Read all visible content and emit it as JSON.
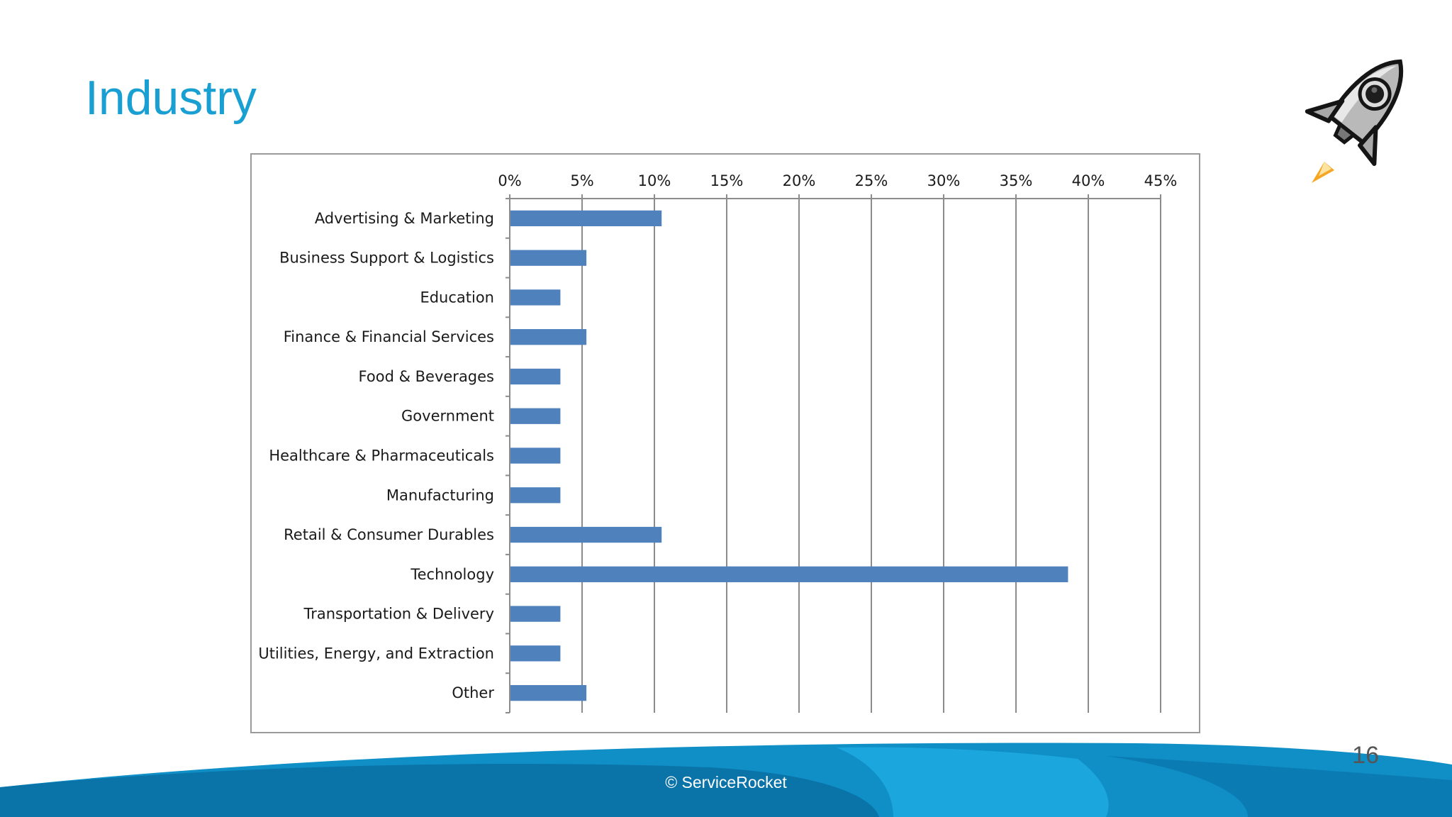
{
  "slide": {
    "title": "Industry",
    "copyright": "© ServiceRocket",
    "page_number": "16"
  },
  "colors": {
    "title": "#1a9fd3",
    "bar": "#4f81bd",
    "grid": "#8c8c8c",
    "footer_dark": "#0a73a8",
    "footer_light": "#1ba7dd"
  },
  "icons": {
    "logo": "rocket-icon"
  },
  "chart_data": {
    "type": "bar",
    "orientation": "horizontal",
    "title": "",
    "xlabel": "",
    "ylabel": "",
    "xlim": [
      0,
      45
    ],
    "ticks": [
      0,
      5,
      10,
      15,
      20,
      25,
      30,
      35,
      40,
      45
    ],
    "tick_labels": [
      "0%",
      "5%",
      "10%",
      "15%",
      "20%",
      "25%",
      "30%",
      "35%",
      "40%",
      "45%"
    ],
    "axis_position": "top",
    "grid": true,
    "categories": [
      "Advertising & Marketing",
      "Business Support & Logistics",
      "Education",
      "Finance & Financial Services",
      "Food & Beverages",
      "Government",
      "Healthcare & Pharmaceuticals",
      "Manufacturing",
      "Retail & Consumer Durables",
      "Technology",
      "Transportation & Delivery",
      "Utilities, Energy, and Extraction",
      "Other"
    ],
    "values": [
      10.5,
      5.3,
      3.5,
      5.3,
      3.5,
      3.5,
      3.5,
      3.5,
      10.5,
      38.6,
      3.5,
      3.5,
      5.3
    ]
  }
}
